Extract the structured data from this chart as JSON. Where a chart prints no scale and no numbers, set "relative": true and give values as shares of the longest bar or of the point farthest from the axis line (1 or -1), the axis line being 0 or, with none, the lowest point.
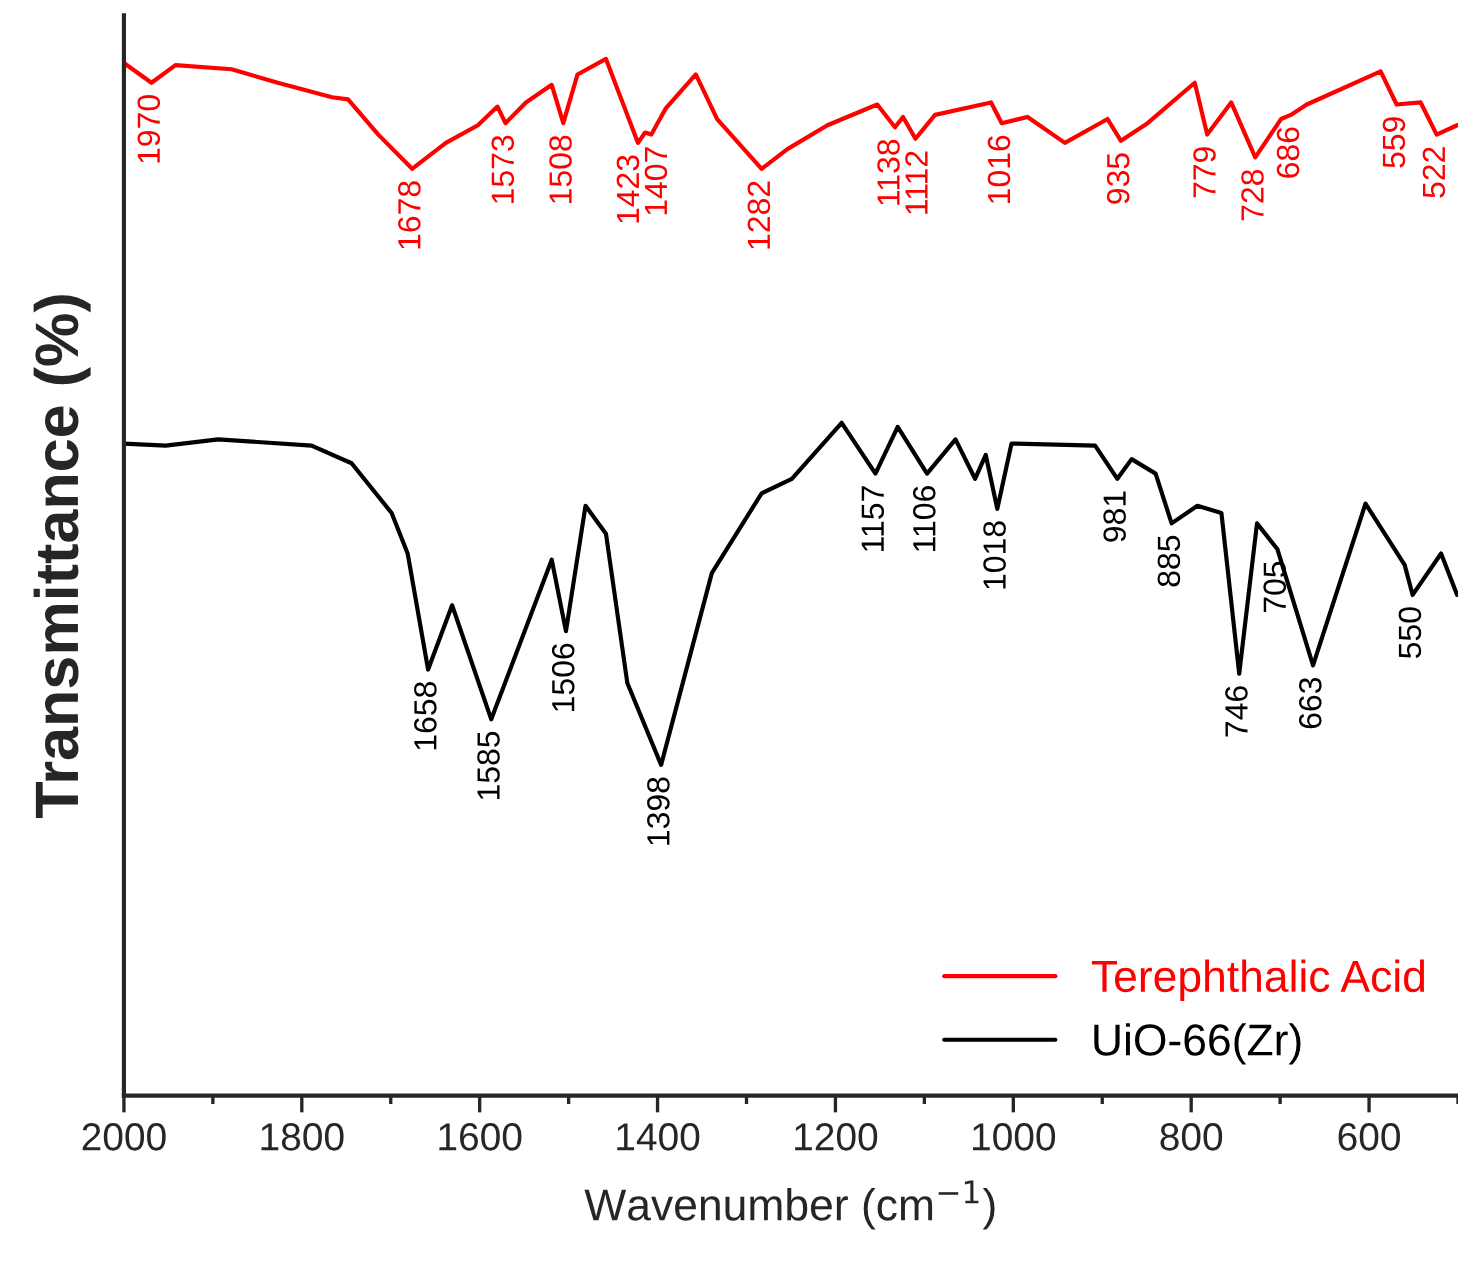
{
  "chart_data": {
    "type": "line",
    "relative": true,
    "xlabel": "Wavenumber (cm$^{−1}$)",
    "ylabel": "Transmittance (%)",
    "xlim": [
      2000,
      500
    ],
    "xticks": [
      2000,
      {
        "value": 1900,
        "label": null
      },
      1800,
      {
        "value": 1700,
        "label": null
      },
      1600,
      {
        "value": 1500,
        "label": null
      },
      1400,
      {
        "value": 1300,
        "label": null
      },
      1200,
      {
        "value": 1100,
        "label": null
      },
      1000,
      {
        "value": 900,
        "label": null
      },
      800,
      {
        "value": 700,
        "label": null
      },
      600,
      {
        "value": 500,
        "label": null
      }
    ],
    "legend": "bottom right",
    "grid": false,
    "tick_labels": "x",
    "series": [
      {
        "name": "Terephthalic Acid",
        "color": "#ff0000",
        "x": [
          2000,
          1969,
          1942,
          1879,
          1827,
          1766,
          1748,
          1714,
          1676,
          1638,
          1602,
          1580,
          1571,
          1548,
          1519,
          1506,
          1490,
          1458,
          1422,
          1414,
          1407,
          1391,
          1357,
          1333,
          1283,
          1254,
          1209,
          1153,
          1133,
          1124,
          1110,
          1088,
          1025,
          1013,
          984,
          942,
          894,
          879,
          849,
          796,
          782,
          755,
          728,
          699,
          688,
          670,
          587,
          569,
          542,
          524,
          501
        ],
        "values": [
          0.996,
          0.977,
          0.994,
          0.99,
          0.977,
          0.963,
          0.961,
          0.927,
          0.894,
          0.919,
          0.936,
          0.954,
          0.938,
          0.958,
          0.975,
          0.938,
          0.985,
          1.0,
          0.919,
          0.929,
          0.927,
          0.952,
          0.985,
          0.942,
          0.894,
          0.913,
          0.936,
          0.956,
          0.934,
          0.944,
          0.923,
          0.946,
          0.958,
          0.938,
          0.944,
          0.919,
          0.942,
          0.921,
          0.938,
          0.977,
          0.927,
          0.958,
          0.905,
          0.942,
          0.946,
          0.956,
          0.988,
          0.956,
          0.958,
          0.927,
          0.936
        ]
      },
      {
        "name": "UiO-66(Zr)",
        "color": "#000000",
        "x": [
          2000,
          1953,
          1894,
          1789,
          1744,
          1699,
          1681,
          1658,
          1631,
          1587,
          1519,
          1503,
          1481,
          1458,
          1434,
          1396,
          1339,
          1283,
          1249,
          1193,
          1155,
          1130,
          1097,
          1065,
          1043,
          1031,
          1018,
          1002,
          908,
          883,
          867,
          840,
          822,
          793,
          766,
          746,
          726,
          703,
          663,
          604,
          560,
          551,
          519,
          501
        ],
        "values": [
          0.629,
          0.627,
          0.633,
          0.627,
          0.61,
          0.562,
          0.523,
          0.411,
          0.473,
          0.363,
          0.517,
          0.448,
          0.569,
          0.542,
          0.398,
          0.319,
          0.504,
          0.581,
          0.595,
          0.649,
          0.6,
          0.645,
          0.6,
          0.633,
          0.595,
          0.618,
          0.566,
          0.629,
          0.627,
          0.595,
          0.614,
          0.6,
          0.552,
          0.569,
          0.562,
          0.407,
          0.552,
          0.527,
          0.415,
          0.571,
          0.512,
          0.483,
          0.523,
          0.483
        ]
      }
    ],
    "annotations": [
      {
        "text": "1970",
        "x": 1969,
        "y": 0.977
      },
      {
        "text": "1678",
        "x": 1676,
        "y": 0.894
      },
      {
        "text": "1573",
        "x": 1571,
        "y": 0.938
      },
      {
        "text": "1508",
        "x": 1506,
        "y": 0.938
      },
      {
        "text": "1423",
        "x": 1422,
        "y": 0.919
      },
      {
        "text": "1407",
        "x": 1407,
        "y": 0.927
      },
      {
        "text": "1282",
        "x": 1283,
        "y": 0.894
      },
      {
        "text": "1138",
        "x": 1133,
        "y": 0.934
      },
      {
        "text": "1112",
        "x": 1110,
        "y": 0.923
      },
      {
        "text": "1016",
        "x": 1013,
        "y": 0.938
      },
      {
        "text": "935",
        "x": 879,
        "y": 0.921
      },
      {
        "text": "779",
        "x": 782,
        "y": 0.927
      },
      {
        "text": "728",
        "x": 728,
        "y": 0.905
      },
      {
        "text": "686",
        "x": 688,
        "y": 0.946
      },
      {
        "text": "559",
        "x": 569,
        "y": 0.956
      },
      {
        "text": "522",
        "x": 524,
        "y": 0.927
      },
      {
        "text": "1658",
        "x": 1658,
        "y": 0.411
      },
      {
        "text": "1585",
        "x": 1587,
        "y": 0.363
      },
      {
        "text": "1506",
        "x": 1503,
        "y": 0.448
      },
      {
        "text": "1398",
        "x": 1396,
        "y": 0.319
      },
      {
        "text": "1157",
        "x": 1155,
        "y": 0.6
      },
      {
        "text": "1106",
        "x": 1097,
        "y": 0.6
      },
      {
        "text": "1018",
        "x": 1018,
        "y": 0.566
      },
      {
        "text": "981",
        "x": 883,
        "y": 0.595
      },
      {
        "text": "885",
        "x": 822,
        "y": 0.552
      },
      {
        "text": "746",
        "x": 746,
        "y": 0.407
      },
      {
        "text": "705",
        "x": 703,
        "y": 0.527
      },
      {
        "text": "663",
        "x": 663,
        "y": 0.415
      },
      {
        "text": "550",
        "x": 551,
        "y": 0.483
      }
    ]
  }
}
